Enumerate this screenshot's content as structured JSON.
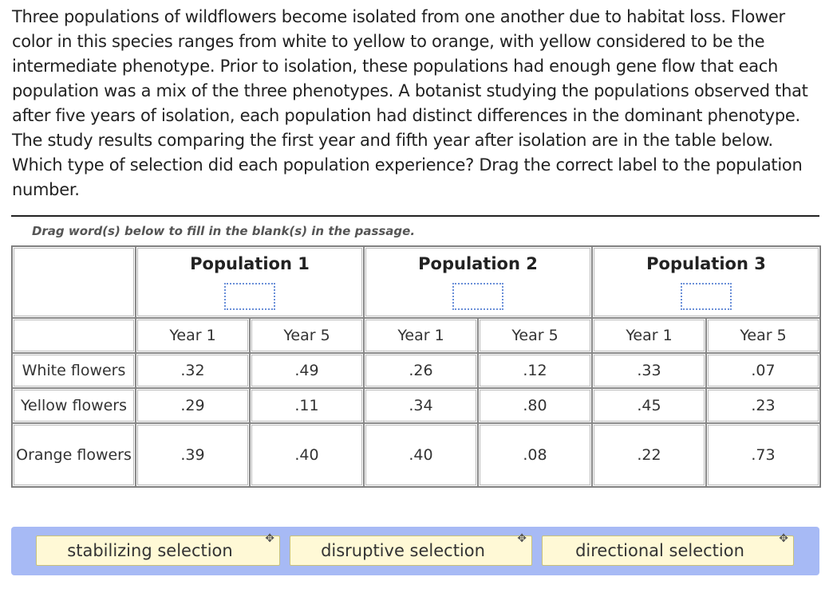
{
  "question": "Three populations of wildflowers become isolated from one another due to habitat loss. Flower color in this species ranges from white to yellow to orange, with yellow considered to be the intermediate phenotype. Prior to isolation, these populations had enough gene flow that each population was a mix of the three phenotypes. A botanist studying the populations observed that after five years of isolation, each population had distinct differences in the dominant phenotype. The study results comparing the first year and fifth year after isolation are in the table below. Which type of selection did each population experience? Drag the correct label to the population number.",
  "instruction": "Drag word(s) below to fill in the blank(s) in the passage.",
  "table": {
    "populations": [
      "Population 1",
      "Population 2",
      "Population 3"
    ],
    "years": [
      "Year 1",
      "Year 5",
      "Year 1",
      "Year 5",
      "Year 1",
      "Year 5"
    ],
    "rows": [
      {
        "label": "White flowers",
        "values": [
          ".32",
          ".49",
          ".26",
          ".12",
          ".33",
          ".07"
        ]
      },
      {
        "label": "Yellow flowers",
        "values": [
          ".29",
          ".11",
          ".34",
          ".80",
          ".45",
          ".23"
        ]
      },
      {
        "label": "Orange flowers",
        "values": [
          ".39",
          ".40",
          ".40",
          ".08",
          ".22",
          ".73"
        ]
      }
    ]
  },
  "word_bank": {
    "color": "#a7baf5",
    "chips": [
      "stabilizing selection",
      "disruptive selection",
      "directional selection"
    ],
    "chip_icon": "move-icon"
  }
}
